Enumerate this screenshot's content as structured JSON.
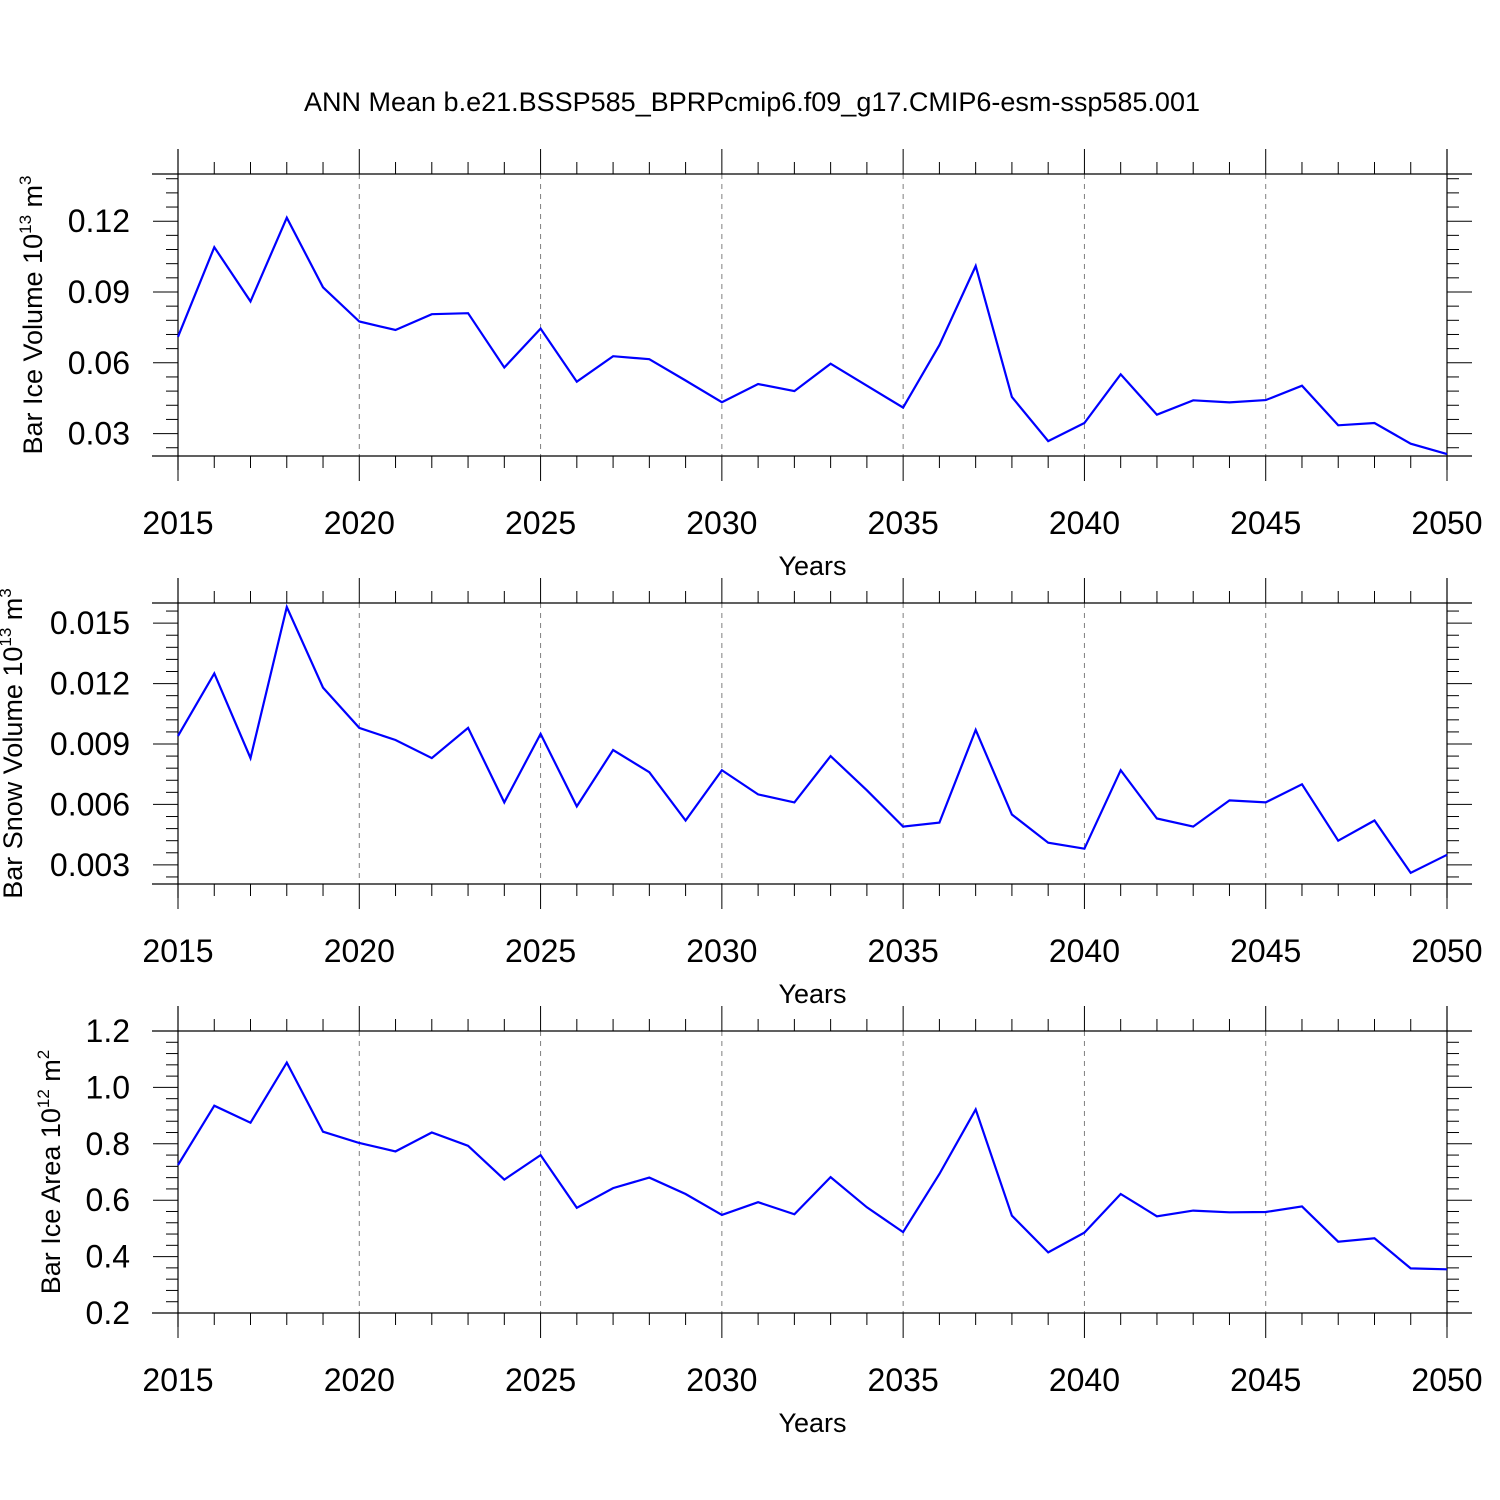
{
  "title": "ANN Mean b.e21.BSSP585_BPRPcmip6.f09_g17.CMIP6-esm-ssp585.001",
  "colors": {
    "series": "#0000ff",
    "axis": "#000000",
    "grid": "#7f7f7f"
  },
  "chart_data": [
    {
      "type": "line",
      "ylabel": {
        "text": "Bar Ice Volume 10",
        "exp": "13",
        "unit": "m",
        "unit_exp": "3"
      },
      "xlabel": "Years",
      "xlim": [
        2015,
        2050
      ],
      "ylim": [
        0.0205,
        0.14
      ],
      "yticks": [
        "0.03",
        "0.06",
        "0.09",
        "0.12"
      ],
      "xticks": [
        "2015",
        "2020",
        "2025",
        "2030",
        "2035",
        "2040",
        "2045",
        "2050"
      ],
      "grid": "vertical dashed at major x ticks",
      "series": [
        {
          "x": [
            2015,
            2016,
            2017,
            2018,
            2019,
            2020,
            2021,
            2022,
            2023,
            2024,
            2025,
            2026,
            2027,
            2028,
            2029,
            2030,
            2031,
            2032,
            2033,
            2034,
            2035,
            2036,
            2037,
            2038,
            2039,
            2040,
            2041,
            2042,
            2043,
            2044,
            2045,
            2046,
            2047,
            2048,
            2049,
            2050
          ],
          "values": [
            0.071,
            0.109,
            0.086,
            0.1215,
            0.092,
            0.0775,
            0.0739,
            0.0806,
            0.081,
            0.058,
            0.0745,
            0.052,
            0.0628,
            0.0615,
            0.0525,
            0.0433,
            0.051,
            0.048,
            0.0596,
            0.0503,
            0.041,
            0.0675,
            0.101,
            0.0455,
            0.0268,
            0.0345,
            0.0551,
            0.038,
            0.0441,
            0.0432,
            0.0442,
            0.0503,
            0.0335,
            0.0345,
            0.0257,
            0.0213
          ]
        }
      ]
    },
    {
      "type": "line",
      "ylabel": {
        "text": "Bar Snow Volume 10",
        "exp": "13",
        "unit": "m",
        "unit_exp": "3"
      },
      "xlabel": "Years",
      "xlim": [
        2015,
        2050
      ],
      "ylim": [
        0.00205,
        0.016
      ],
      "yticks": [
        "0.003",
        "0.006",
        "0.009",
        "0.012",
        "0.015"
      ],
      "xticks": [
        "2015",
        "2020",
        "2025",
        "2030",
        "2035",
        "2040",
        "2045",
        "2050"
      ],
      "grid": "vertical dashed at major x ticks",
      "series": [
        {
          "x": [
            2015,
            2016,
            2017,
            2018,
            2019,
            2020,
            2021,
            2022,
            2023,
            2024,
            2025,
            2026,
            2027,
            2028,
            2029,
            2030,
            2031,
            2032,
            2033,
            2034,
            2035,
            2036,
            2037,
            2038,
            2039,
            2040,
            2041,
            2042,
            2043,
            2044,
            2045,
            2046,
            2047,
            2048,
            2049,
            2050
          ],
          "values": [
            0.0094,
            0.0125,
            0.0083,
            0.0158,
            0.0118,
            0.0098,
            0.0092,
            0.0083,
            0.0098,
            0.0061,
            0.0095,
            0.0059,
            0.0087,
            0.0076,
            0.0052,
            0.0077,
            0.0065,
            0.0061,
            0.0084,
            0.0067,
            0.0049,
            0.0051,
            0.0097,
            0.0055,
            0.0041,
            0.0038,
            0.0077,
            0.0053,
            0.0049,
            0.0062,
            0.0061,
            0.007,
            0.0042,
            0.0052,
            0.0026,
            0.0035
          ]
        }
      ]
    },
    {
      "type": "line",
      "ylabel": {
        "text": "Bar Ice Area 10",
        "exp": "12",
        "unit": "m",
        "unit_exp": "2"
      },
      "xlabel": "Years",
      "xlim": [
        2015,
        2050
      ],
      "ylim": [
        0.2,
        1.2
      ],
      "yticks": [
        "0.2",
        "0.4",
        "0.6",
        "0.8",
        "1.0",
        "1.2"
      ],
      "xticks": [
        "2015",
        "2020",
        "2025",
        "2030",
        "2035",
        "2040",
        "2045",
        "2050"
      ],
      "grid": "vertical dashed at major x ticks",
      "series": [
        {
          "x": [
            2015,
            2016,
            2017,
            2018,
            2019,
            2020,
            2021,
            2022,
            2023,
            2024,
            2025,
            2026,
            2027,
            2028,
            2029,
            2030,
            2031,
            2032,
            2033,
            2034,
            2035,
            2036,
            2037,
            2038,
            2039,
            2040,
            2041,
            2042,
            2043,
            2044,
            2045,
            2046,
            2047,
            2048,
            2049,
            2050
          ],
          "values": [
            0.725,
            0.935,
            0.875,
            1.088,
            0.843,
            0.803,
            0.773,
            0.84,
            0.793,
            0.673,
            0.76,
            0.573,
            0.643,
            0.68,
            0.622,
            0.548,
            0.593,
            0.55,
            0.682,
            0.575,
            0.487,
            0.693,
            0.922,
            0.545,
            0.415,
            0.485,
            0.622,
            0.543,
            0.563,
            0.557,
            0.558,
            0.578,
            0.453,
            0.465,
            0.358,
            0.355
          ]
        }
      ]
    }
  ]
}
